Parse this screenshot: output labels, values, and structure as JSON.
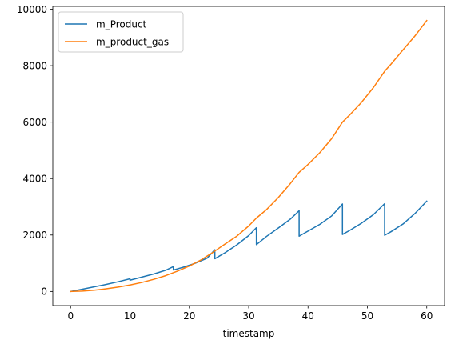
{
  "chart_data": {
    "type": "line",
    "title": "",
    "xlabel": "timestamp",
    "ylabel": "",
    "xlim": [
      -3,
      63
    ],
    "ylim": [
      -500,
      10100
    ],
    "xticks": [
      0,
      10,
      20,
      30,
      40,
      50,
      60
    ],
    "yticks": [
      0,
      2000,
      4000,
      6000,
      8000,
      10000
    ],
    "grid": false,
    "legend_position": "top-left",
    "series": [
      {
        "name": "m_Product",
        "color": "#1f77b4",
        "points": [
          [
            0,
            0
          ],
          [
            2,
            80
          ],
          [
            4,
            165
          ],
          [
            6,
            250
          ],
          [
            8,
            345
          ],
          [
            10,
            450
          ],
          [
            10,
            400
          ],
          [
            12,
            510
          ],
          [
            14,
            620
          ],
          [
            16,
            750
          ],
          [
            17.3,
            880
          ],
          [
            17.3,
            760
          ],
          [
            19,
            860
          ],
          [
            21,
            1000
          ],
          [
            23,
            1180
          ],
          [
            24.3,
            1480
          ],
          [
            24.3,
            1160
          ],
          [
            26,
            1370
          ],
          [
            28,
            1650
          ],
          [
            30,
            1980
          ],
          [
            31.3,
            2260
          ],
          [
            31.3,
            1660
          ],
          [
            33,
            1950
          ],
          [
            35,
            2250
          ],
          [
            37,
            2560
          ],
          [
            38.5,
            2860
          ],
          [
            38.5,
            1960
          ],
          [
            40,
            2140
          ],
          [
            42,
            2380
          ],
          [
            44,
            2680
          ],
          [
            45.8,
            3100
          ],
          [
            45.8,
            2020
          ],
          [
            47,
            2160
          ],
          [
            49,
            2420
          ],
          [
            51,
            2720
          ],
          [
            52.9,
            3110
          ],
          [
            52.9,
            1990
          ],
          [
            54,
            2120
          ],
          [
            56,
            2390
          ],
          [
            58,
            2760
          ],
          [
            60,
            3200
          ]
        ]
      },
      {
        "name": "m_product_gas",
        "color": "#ff7f0e",
        "points": [
          [
            0,
            0
          ],
          [
            2,
            15
          ],
          [
            4,
            45
          ],
          [
            6,
            95
          ],
          [
            8,
            155
          ],
          [
            10,
            230
          ],
          [
            12,
            320
          ],
          [
            14,
            430
          ],
          [
            16,
            560
          ],
          [
            18,
            720
          ],
          [
            20,
            900
          ],
          [
            22,
            1120
          ],
          [
            24,
            1390
          ],
          [
            26,
            1680
          ],
          [
            28,
            1960
          ],
          [
            30,
            2320
          ],
          [
            31.3,
            2600
          ],
          [
            33,
            2900
          ],
          [
            35,
            3330
          ],
          [
            37,
            3820
          ],
          [
            38.5,
            4220
          ],
          [
            40,
            4500
          ],
          [
            42,
            4920
          ],
          [
            44,
            5420
          ],
          [
            45.8,
            6000
          ],
          [
            47,
            6250
          ],
          [
            49,
            6700
          ],
          [
            51,
            7220
          ],
          [
            52.9,
            7800
          ],
          [
            54,
            8060
          ],
          [
            56,
            8560
          ],
          [
            58,
            9050
          ],
          [
            60,
            9600
          ]
        ]
      }
    ]
  }
}
